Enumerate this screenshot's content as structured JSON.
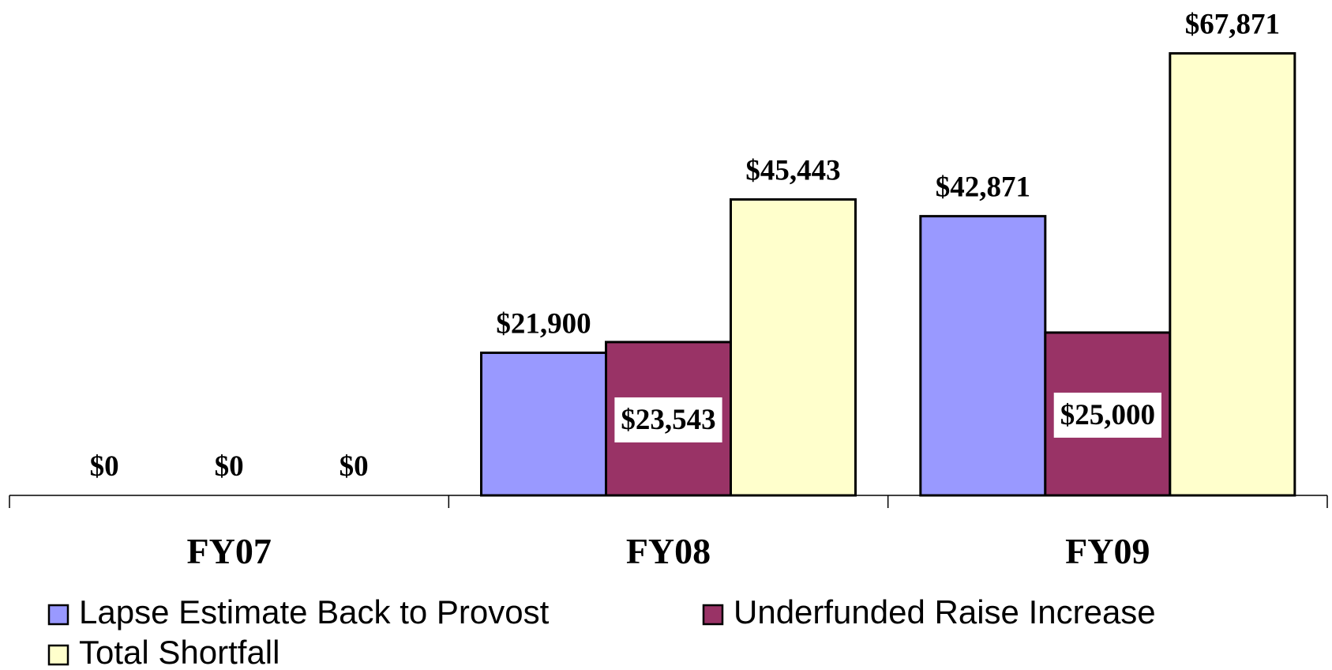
{
  "chart_data": {
    "type": "bar",
    "categories": [
      "FY07",
      "FY08",
      "FY09"
    ],
    "series": [
      {
        "name": "Lapse Estimate Back to Provost",
        "color": "#9999ff",
        "values": [
          0,
          21900,
          42871
        ],
        "value_labels": [
          "$0",
          "$21,900",
          "$42,871"
        ]
      },
      {
        "name": "Underfunded Raise Increase",
        "color": "#993366",
        "values": [
          0,
          23543,
          25000
        ],
        "value_labels": [
          "$0",
          "$23,543",
          "$25,000"
        ]
      },
      {
        "name": "Total Shortfall",
        "color": "#ffffcc",
        "values": [
          0,
          45443,
          67871
        ],
        "value_labels": [
          "$0",
          "$45,443",
          "$67,871"
        ]
      }
    ],
    "ylim": [
      0,
      70000
    ]
  }
}
